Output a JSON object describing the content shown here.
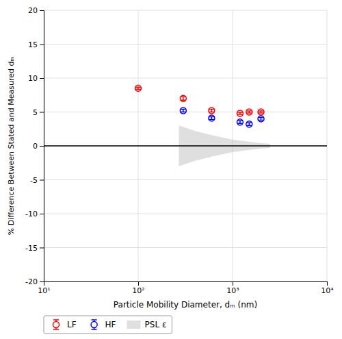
{
  "chart_data": {
    "type": "scatter",
    "xlabel": "Particle Mobility Diameter, dₘ (nm)",
    "ylabel": "% Difference Between Stated and Measured dₘ",
    "log": "x",
    "xlim": [
      10,
      10000
    ],
    "ylim": [
      -20,
      20
    ],
    "xticks": [
      {
        "value": 10,
        "label": "10¹"
      },
      {
        "value": 100,
        "label": "10²"
      },
      {
        "value": 1000,
        "label": "10³"
      },
      {
        "value": 10000,
        "label": "10⁴"
      }
    ],
    "yticks": [
      -20,
      -15,
      -10,
      -5,
      0,
      5,
      10,
      15,
      20
    ],
    "grid": true,
    "legend": "lower left",
    "hline": 0,
    "series": [
      {
        "name": "LF",
        "type": "scatter",
        "marker": "circle",
        "color": "#FF0000",
        "x": [
          100,
          300,
          600,
          1200,
          1500,
          2000
        ],
        "values": [
          8.5,
          7.0,
          5.2,
          4.8,
          5.0,
          5.0
        ],
        "errors": [
          0.15,
          0.25,
          0.2,
          0.15,
          0.15,
          0.15
        ]
      },
      {
        "name": "HF",
        "type": "scatter",
        "marker": "circle",
        "color": "#0000FF",
        "x": [
          300,
          600,
          1200,
          1500,
          2000
        ],
        "values": [
          5.2,
          4.1,
          3.5,
          3.2,
          4.0
        ],
        "errors": [
          0.2,
          0.2,
          0.2,
          0.2,
          0.2
        ]
      },
      {
        "name": "PSL ε",
        "type": "area",
        "color": "#C0C0C0",
        "x": [
          270,
          400,
          600,
          800,
          1000,
          1500,
          2000,
          2500
        ],
        "upper": [
          3.0,
          2.2,
          1.6,
          1.2,
          0.9,
          0.6,
          0.4,
          0.3
        ],
        "lower": [
          -3.0,
          -2.2,
          -1.6,
          -1.2,
          -0.9,
          -0.6,
          -0.4,
          -0.3
        ]
      }
    ]
  }
}
